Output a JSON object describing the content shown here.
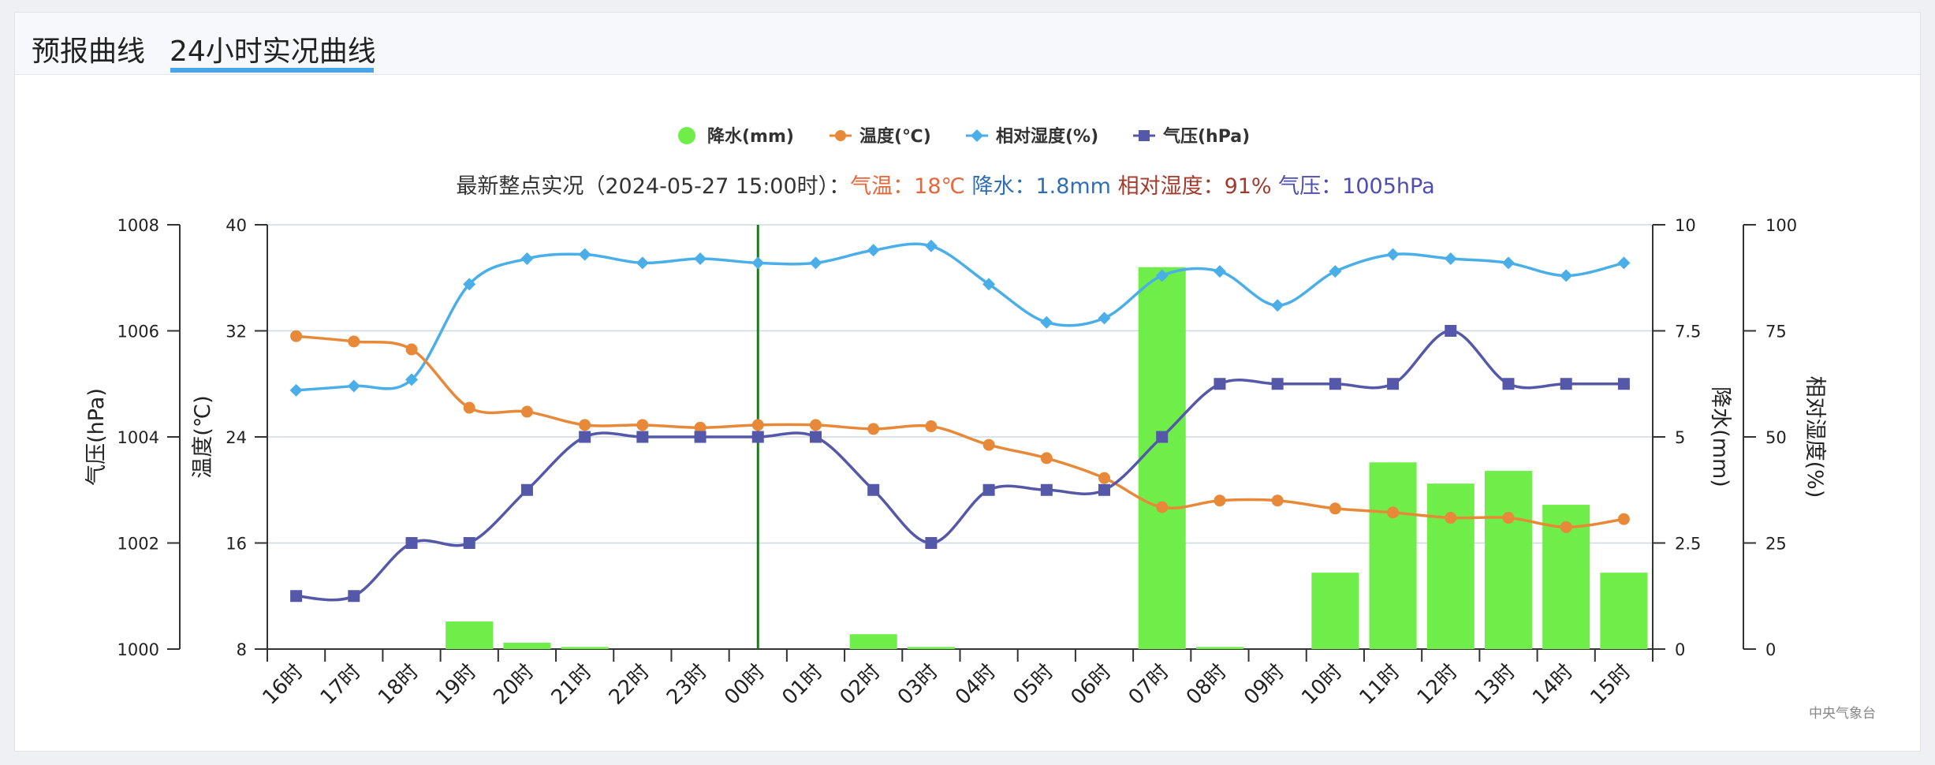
{
  "tabs": [
    {
      "label": "预报曲线",
      "active": false
    },
    {
      "label": "24小时实况曲线",
      "active": true
    }
  ],
  "summary": {
    "prefix": "最新整点实况（2024-05-27 15:00时）：",
    "temp_text": "气温：18℃",
    "rain_text": " 降水：1.8mm",
    "humidity_text": " 相对湿度：91%",
    "pressure_text": " 气压：1005hPa",
    "prefix_color": "#333333",
    "temp_color": "#e8663a",
    "rain_color": "#2e6fb3",
    "humidity_color": "#a33a2e",
    "pressure_color": "#4d4db3"
  },
  "credit": "中央气象台",
  "chart_data": {
    "type": "bar+line",
    "categories": [
      "16时",
      "17时",
      "18时",
      "19时",
      "20时",
      "21时",
      "22时",
      "23时",
      "00时",
      "01时",
      "02时",
      "03时",
      "04时",
      "05时",
      "06时",
      "07时",
      "08时",
      "09时",
      "10时",
      "11时",
      "12时",
      "13时",
      "14时",
      "15时"
    ],
    "legend": [
      {
        "name": "降水(mm)",
        "color": "#6fee4a",
        "marker": "circle"
      },
      {
        "name": "温度(℃)",
        "color": "#e8893a",
        "marker": "circle"
      },
      {
        "name": "相对湿度(%)",
        "color": "#4aaee8",
        "marker": "diamond"
      },
      {
        "name": "气压(hPa)",
        "color": "#5558a8",
        "marker": "square"
      }
    ],
    "series": {
      "rain": [
        0,
        0,
        0,
        0.65,
        0.15,
        0.05,
        0,
        0,
        0,
        0,
        0.35,
        0.05,
        0,
        0,
        0,
        9,
        0.05,
        0,
        1.8,
        4.4,
        3.9,
        4.2,
        3.4,
        1.8
      ],
      "temperature": [
        31.6,
        31.2,
        30.6,
        26.2,
        25.9,
        24.9,
        24.9,
        24.7,
        24.9,
        24.9,
        24.6,
        24.8,
        23.4,
        22.4,
        20.9,
        18.7,
        19.2,
        19.2,
        18.6,
        18.3,
        17.9,
        17.9,
        17.2,
        17.8
      ],
      "humidity": [
        61,
        62,
        63.5,
        86,
        92,
        93,
        91,
        92,
        91,
        91,
        94,
        95,
        86,
        77,
        78,
        88,
        89,
        81,
        89,
        93,
        92,
        91,
        88,
        91
      ],
      "pressure": [
        1001,
        1001,
        1002,
        1002,
        1003,
        1004,
        1004,
        1004,
        1004,
        1004,
        1003,
        1002,
        1003,
        1003,
        1003,
        1004,
        1005,
        1005,
        1005,
        1005,
        1006,
        1005,
        1005,
        1005
      ]
    },
    "axes": {
      "pressure": {
        "label": "气压(hPa)",
        "range": [
          1000,
          1008
        ],
        "ticks": [
          1000,
          1002,
          1004,
          1006,
          1008
        ]
      },
      "temperature": {
        "label": "温度(℃)",
        "range": [
          8,
          40
        ],
        "ticks": [
          8,
          16,
          24,
          32,
          40
        ]
      },
      "rain": {
        "label": "降水(mm)",
        "range": [
          0,
          10
        ],
        "ticks": [
          "0",
          "2.5",
          "5",
          "7.5",
          "10"
        ]
      },
      "humidity": {
        "label": "相对湿度(%)",
        "range": [
          0,
          100
        ],
        "ticks": [
          0,
          25,
          50,
          75,
          100
        ]
      }
    },
    "marker_line_category": "00时",
    "marker_line_color": "#1f7a1f",
    "grid": true
  }
}
